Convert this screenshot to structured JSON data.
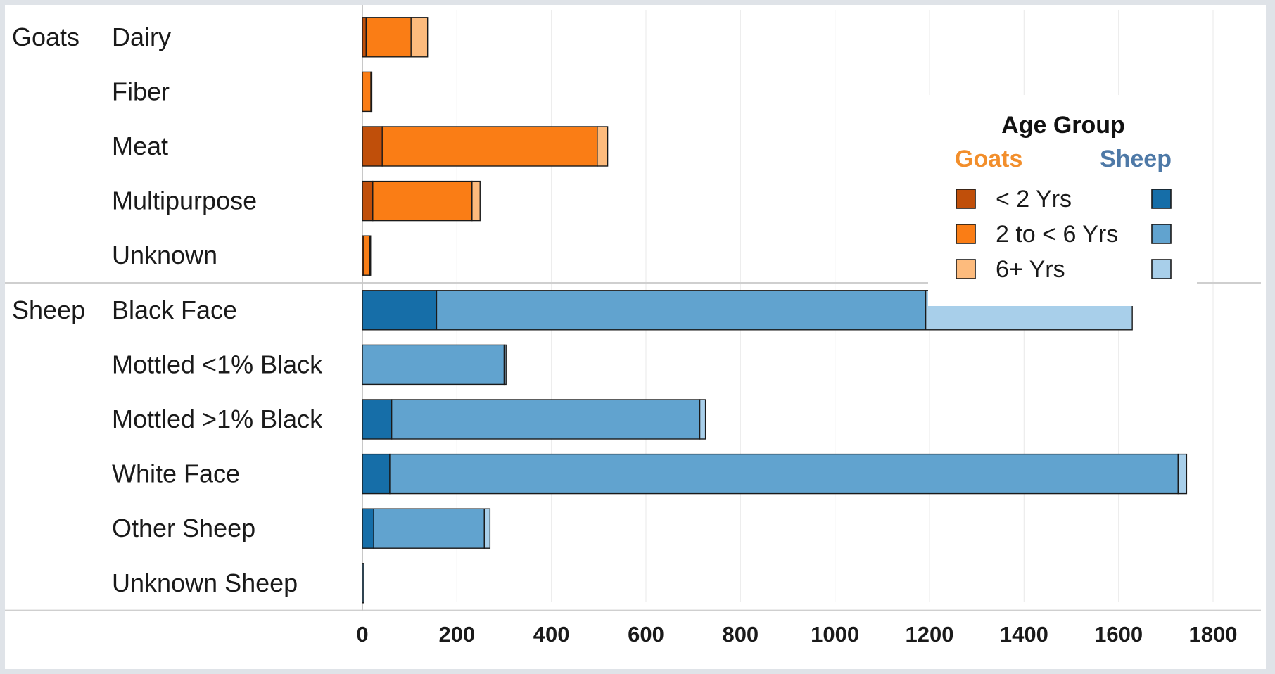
{
  "chart_data": {
    "type": "bar",
    "orientation": "horizontal",
    "stacked": true,
    "x_axis": {
      "min": 0,
      "max": 1800,
      "ticks": [
        "0",
        "200",
        "400",
        "600",
        "800",
        "1000",
        "1200",
        "1400",
        "1600",
        "1800"
      ],
      "grid": true
    },
    "series_names": [
      "< 2 Yrs",
      "2 to < 6 Yrs",
      "6+ Yrs"
    ],
    "groups": [
      {
        "name": "Goats",
        "colors": [
          "#c04f0a",
          "#fa7d15",
          "#fdbb7d"
        ],
        "categories": [
          {
            "name": "Dairy",
            "values": [
              8,
              95,
              35
            ]
          },
          {
            "name": "Fiber",
            "values": [
              0,
              18,
              2
            ]
          },
          {
            "name": "Meat",
            "values": [
              42,
              455,
              22
            ]
          },
          {
            "name": "Multipurpose",
            "values": [
              22,
              210,
              17
            ]
          },
          {
            "name": "Unknown",
            "values": [
              3,
              13,
              1
            ]
          }
        ]
      },
      {
        "name": "Sheep",
        "colors": [
          "#166ea8",
          "#61a3cf",
          "#a8cfea"
        ],
        "categories": [
          {
            "name": "Black Face",
            "values": [
              157,
              1035,
              437
            ]
          },
          {
            "name": "Mottled <1% Black",
            "values": [
              0,
              300,
              4
            ]
          },
          {
            "name": "Mottled >1% Black",
            "values": [
              62,
              652,
              12
            ]
          },
          {
            "name": "White Face",
            "values": [
              58,
              1668,
              18
            ]
          },
          {
            "name": "Other Sheep",
            "values": [
              24,
              234,
              12
            ]
          },
          {
            "name": "Unknown Sheep",
            "values": [
              0,
              3,
              0
            ]
          }
        ]
      }
    ],
    "legend": {
      "title": "Age Group",
      "position": "top-right",
      "group_headers": [
        "Goats",
        "Sheep"
      ],
      "header_colors": [
        "#f28e2b",
        "#4e79a7"
      ],
      "items": [
        "< 2 Yrs",
        "2 to < 6 Yrs",
        "6+ Yrs"
      ]
    }
  }
}
